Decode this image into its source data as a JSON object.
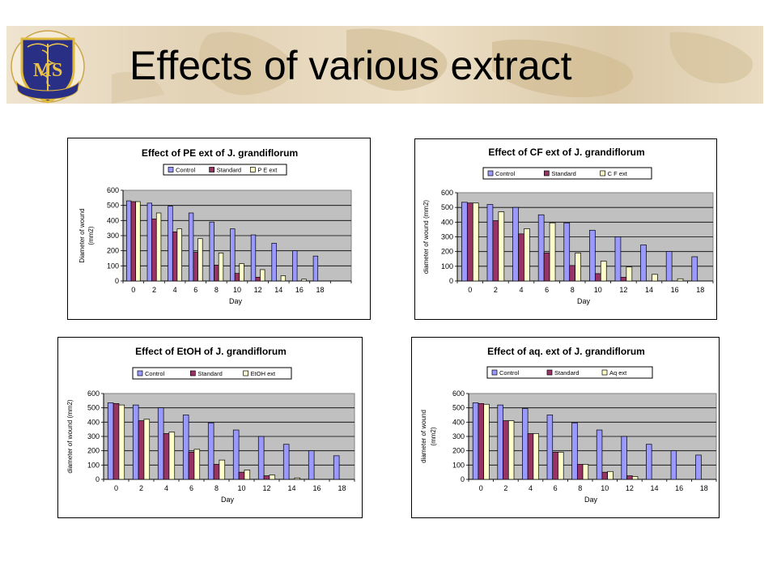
{
  "slide": {
    "title": "Effects of various extract"
  },
  "colors": {
    "control": "#9999ff",
    "standard": "#993366",
    "extract": "#ffffcc",
    "plot_area": "#c0c0c0",
    "bar_stroke": "#000000"
  },
  "chart_data": [
    {
      "type": "bar",
      "title": "Effect of PE ext of J. grandiflorum",
      "xlabel": "Day",
      "ylabel": [
        "Diameter of wound",
        "(mm2)"
      ],
      "ylim": [
        0,
        600
      ],
      "yticks": [
        0,
        100,
        200,
        300,
        400,
        500,
        600
      ],
      "categories": [
        "0",
        "2",
        "4",
        "6",
        "8",
        "10",
        "12",
        "14",
        "16",
        "18"
      ],
      "extra_ticks": 1,
      "legend_position": "top",
      "series": [
        {
          "name": "Control",
          "values": [
            530,
            515,
            495,
            450,
            390,
            345,
            305,
            250,
            200,
            165
          ]
        },
        {
          "name": "Standard",
          "values": [
            525,
            410,
            325,
            190,
            105,
            50,
            25,
            0,
            0,
            0
          ]
        },
        {
          "name": "P E ext",
          "values": [
            525,
            450,
            345,
            280,
            185,
            115,
            75,
            35,
            12,
            0
          ]
        }
      ]
    },
    {
      "type": "bar",
      "title": "Effect of CF ext of J. grandiflorum",
      "xlabel": "Day",
      "ylabel": [
        "diameter of wound (mm2)"
      ],
      "ylim": [
        0,
        600
      ],
      "yticks": [
        0,
        100,
        200,
        300,
        400,
        500,
        600
      ],
      "categories": [
        "0",
        "2",
        "4",
        "6",
        "8",
        "10",
        "12",
        "14",
        "16",
        "18"
      ],
      "extra_ticks": 0,
      "legend_position": "top",
      "series": [
        {
          "name": "Control",
          "values": [
            535,
            520,
            500,
            450,
            395,
            345,
            300,
            245,
            200,
            165
          ]
        },
        {
          "name": "Standard",
          "values": [
            530,
            410,
            320,
            190,
            105,
            50,
            25,
            0,
            0,
            0
          ]
        },
        {
          "name": "C F ext",
          "values": [
            530,
            470,
            355,
            395,
            190,
            135,
            95,
            45,
            15,
            0
          ]
        }
      ]
    },
    {
      "type": "bar",
      "title": "Effect of EtOH of J. grandiflorum",
      "xlabel": "Day",
      "ylabel": [
        "diameter of wound (mm2)"
      ],
      "ylim": [
        0,
        600
      ],
      "yticks": [
        0,
        100,
        200,
        300,
        400,
        500,
        600
      ],
      "categories": [
        "0",
        "2",
        "4",
        "6",
        "8",
        "10",
        "12",
        "14",
        "16",
        "18"
      ],
      "extra_ticks": 0,
      "legend_position": "top",
      "series": [
        {
          "name": "Control",
          "values": [
            535,
            520,
            500,
            450,
            395,
            345,
            300,
            245,
            200,
            165
          ]
        },
        {
          "name": "Standard",
          "values": [
            530,
            410,
            320,
            190,
            105,
            50,
            25,
            0,
            0,
            0
          ]
        },
        {
          "name": "EtOH ext",
          "values": [
            520,
            420,
            330,
            210,
            135,
            65,
            30,
            10,
            0,
            0
          ]
        }
      ]
    },
    {
      "type": "bar",
      "title": "Effect of aq. ext of J. grandiflorum",
      "xlabel": "Day",
      "ylabel": [
        "diameter of wound",
        "(mm2)"
      ],
      "ylim": [
        0,
        600
      ],
      "yticks": [
        0,
        100,
        200,
        300,
        400,
        500,
        600
      ],
      "categories": [
        "0",
        "2",
        "4",
        "6",
        "8",
        "10",
        "12",
        "14",
        "16",
        "18"
      ],
      "extra_ticks": 0,
      "legend_position": "top",
      "series": [
        {
          "name": "Control",
          "values": [
            535,
            520,
            495,
            450,
            395,
            345,
            300,
            245,
            200,
            170
          ]
        },
        {
          "name": "Standard",
          "values": [
            530,
            410,
            320,
            190,
            105,
            50,
            25,
            0,
            0,
            0
          ]
        },
        {
          "name": "Aq ext",
          "values": [
            525,
            410,
            320,
            190,
            105,
            55,
            20,
            0,
            0,
            0
          ]
        }
      ]
    }
  ]
}
